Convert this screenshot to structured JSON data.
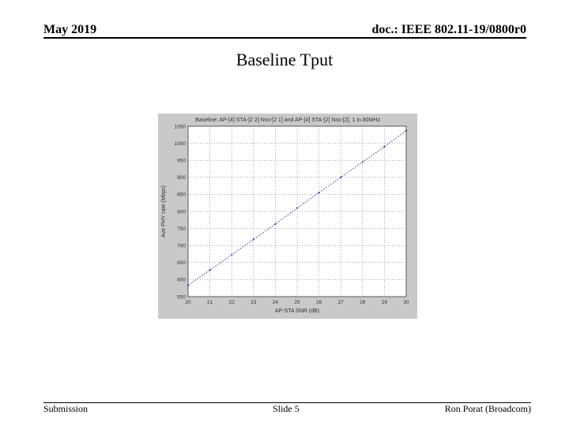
{
  "header": {
    "date": "May 2019",
    "doc_id": "doc.: IEEE 802.11-19/0800r0"
  },
  "slide": {
    "title": "Baseline Tput"
  },
  "footer": {
    "left": "Submission",
    "center": "Slide 5",
    "right": "Ron Porat (Broadcom)"
  },
  "chart_data": {
    "type": "line",
    "title": "Baseline: AP-[4] STA-[2 2] Nss-[2 1] and AP-[4] STA-[2] Nss-[2], 1 in 80MHz",
    "xlabel": "AP-STA SNR (dB)",
    "ylabel": "Ave PHY rate (Mbps)",
    "xlim": [
      20,
      30
    ],
    "ylim": [
      550,
      1050
    ],
    "xticks": [
      20,
      21,
      22,
      23,
      24,
      25,
      26,
      27,
      28,
      29,
      30
    ],
    "yticks": [
      550,
      600,
      650,
      700,
      750,
      800,
      850,
      900,
      950,
      1000,
      1050
    ],
    "grid": true,
    "series": [
      {
        "color": "#2f3fb0",
        "x": [
          20,
          21,
          22,
          23,
          24,
          25,
          26,
          27,
          28,
          29,
          30
        ],
        "y": [
          583,
          628,
          673,
          718,
          763,
          810,
          855,
          900,
          945,
          990,
          1037
        ]
      }
    ]
  }
}
